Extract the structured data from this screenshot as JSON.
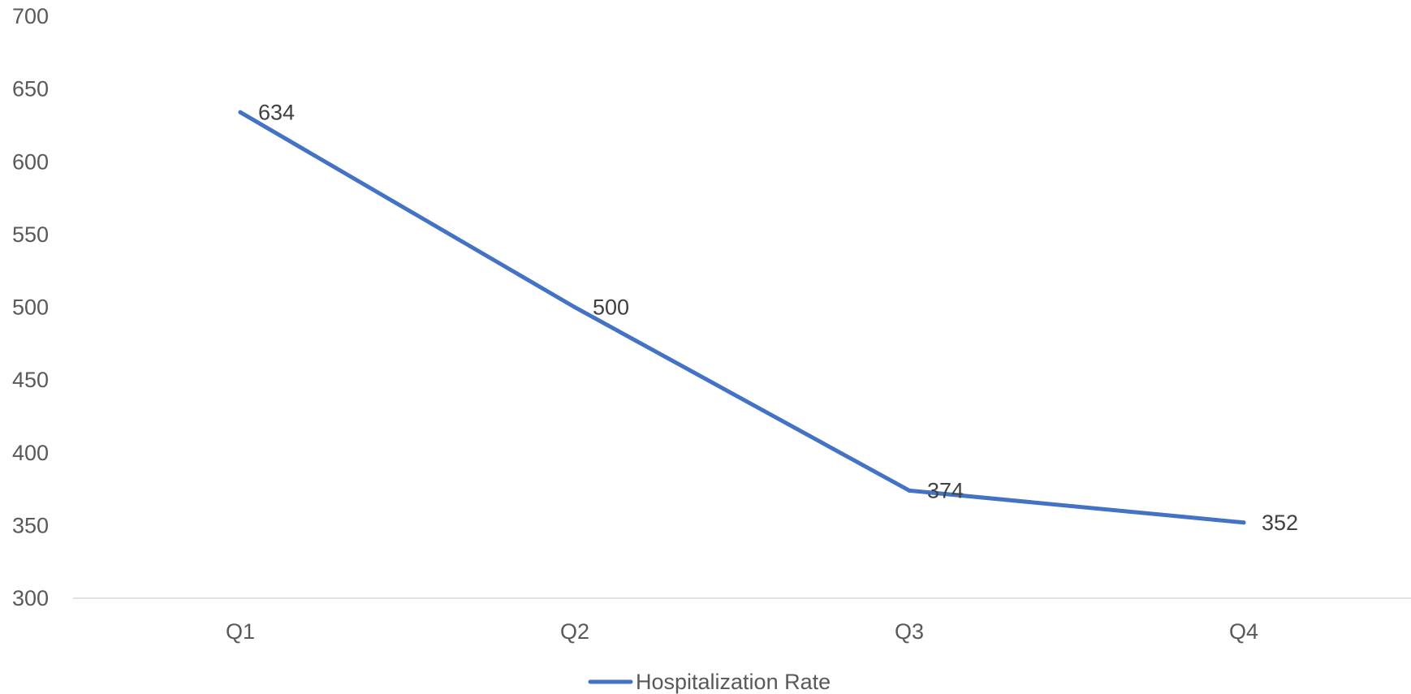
{
  "chart_data": {
    "type": "line",
    "title": "",
    "xlabel": "",
    "ylabel": "",
    "categories": [
      "Q1",
      "Q2",
      "Q3",
      "Q4"
    ],
    "series": [
      {
        "name": "Hospitalization Rate",
        "values": [
          634,
          500,
          374,
          352
        ],
        "color": "#4472c4"
      }
    ],
    "data_labels": [
      "634",
      "500",
      "374",
      "352"
    ],
    "ylim": [
      300,
      700
    ],
    "yticks": [
      300,
      350,
      400,
      450,
      500,
      550,
      600,
      650,
      700
    ],
    "ytick_labels": [
      "300",
      "350",
      "400",
      "450",
      "500",
      "550",
      "600",
      "650",
      "700"
    ],
    "grid": false,
    "legend_position": "bottom",
    "axis_color": "#d9d9d9"
  }
}
